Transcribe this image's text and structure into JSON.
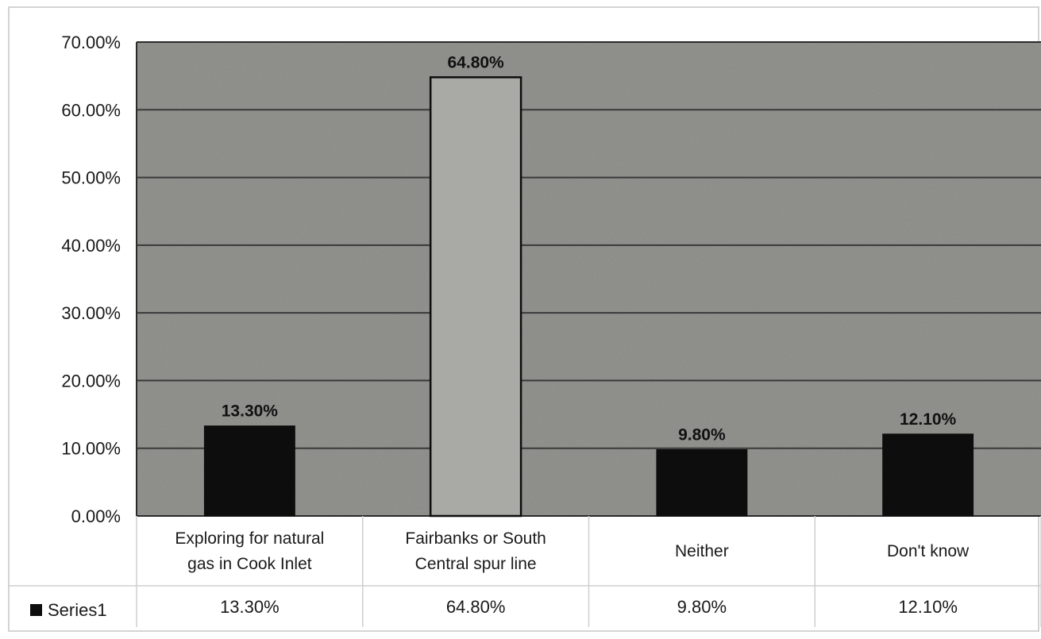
{
  "chart_data": {
    "type": "bar",
    "categories": [
      [
        "Exploring for natural",
        "gas in Cook Inlet"
      ],
      [
        "Fairbanks or South",
        "Central spur line"
      ],
      [
        "Neither"
      ],
      [
        "Don't know"
      ]
    ],
    "series": [
      {
        "name": "Series1",
        "values": [
          13.3,
          64.8,
          9.8,
          12.1
        ]
      }
    ],
    "data_labels": [
      "13.30%",
      "64.80%",
      "9.80%",
      "12.10%"
    ],
    "ylim": [
      0,
      70
    ],
    "yticks": [
      "0.00%",
      "10.00%",
      "20.00%",
      "30.00%",
      "40.00%",
      "50.00%",
      "60.00%",
      "70.00%"
    ],
    "grid": true,
    "data_table": true,
    "colors": {
      "plot_bg": "#8a8a86",
      "gridline": "#3a3a3a",
      "bar": "#0d0d0d",
      "bar_highlight": "#a9a9a6"
    }
  }
}
